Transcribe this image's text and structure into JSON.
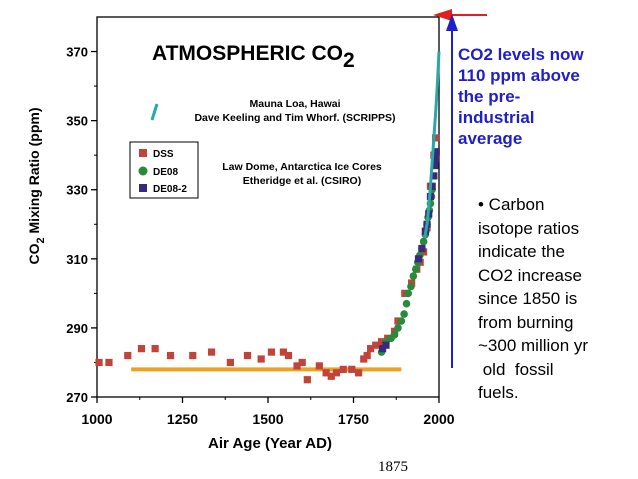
{
  "chart_data": {
    "type": "scatter",
    "title": "ATMOSPHERIC CO",
    "title_subscript": "2",
    "xlabel": "Air Age (Year AD)",
    "ylabel": "CO",
    "ylabel_subscript": "2",
    "ylabel_rest": " Mixing Ratio (ppm)",
    "xlim": [
      1000,
      2000
    ],
    "ylim": [
      270,
      380
    ],
    "x_ticks": [
      "1000",
      "1250",
      "1500",
      "1750",
      "2000"
    ],
    "y_ticks": [
      "270",
      "290",
      "310",
      "330",
      "350",
      "370"
    ],
    "annotations": {
      "mauna_loa_line1": "Mauna Loa, Hawai",
      "mauna_loa_line2": "Dave Keeling and Tim Whorf. (SCRIPPS)",
      "law_dome_line1": "Law Dome, Antarctica Ice Cores",
      "law_dome_line2": "Etheridge et al. (CSIRO)"
    },
    "legend_position": "left-middle",
    "series": [
      {
        "name": "DSS",
        "marker": "square",
        "color": "#c0443a",
        "points": [
          [
            1006,
            280
          ],
          [
            1035,
            280
          ],
          [
            1090,
            282
          ],
          [
            1130,
            284
          ],
          [
            1170,
            284
          ],
          [
            1215,
            282
          ],
          [
            1280,
            282
          ],
          [
            1335,
            283
          ],
          [
            1390,
            280
          ],
          [
            1440,
            282
          ],
          [
            1480,
            281
          ],
          [
            1510,
            283
          ],
          [
            1545,
            283
          ],
          [
            1560,
            282
          ],
          [
            1585,
            279
          ],
          [
            1600,
            280
          ],
          [
            1615,
            275
          ],
          [
            1650,
            279
          ],
          [
            1670,
            277
          ],
          [
            1685,
            276
          ],
          [
            1700,
            277
          ],
          [
            1720,
            278
          ],
          [
            1745,
            278
          ],
          [
            1765,
            277
          ],
          [
            1780,
            281
          ],
          [
            1790,
            282
          ],
          [
            1800,
            284
          ],
          [
            1815,
            285
          ],
          [
            1832,
            286
          ],
          [
            1850,
            287
          ],
          [
            1870,
            289
          ],
          [
            1880,
            292
          ],
          [
            1900,
            300
          ],
          [
            1920,
            303
          ],
          [
            1935,
            307
          ],
          [
            1945,
            309
          ],
          [
            1955,
            312
          ],
          [
            1965,
            319
          ],
          [
            1975,
            331
          ],
          [
            1985,
            340
          ],
          [
            1990,
            345
          ]
        ]
      },
      {
        "name": "DE08",
        "marker": "circle",
        "color": "#2a8a3c",
        "points": [
          [
            1832,
            283
          ],
          [
            1845,
            286
          ],
          [
            1860,
            287
          ],
          [
            1870,
            288
          ],
          [
            1880,
            290
          ],
          [
            1890,
            292
          ],
          [
            1898,
            294
          ],
          [
            1905,
            297
          ],
          [
            1910,
            300
          ],
          [
            1918,
            302
          ],
          [
            1925,
            305
          ],
          [
            1932,
            307
          ],
          [
            1938,
            309
          ],
          [
            1944,
            311
          ],
          [
            1950,
            313
          ],
          [
            1955,
            315
          ],
          [
            1960,
            317
          ],
          [
            1962,
            318
          ],
          [
            1965,
            320
          ],
          [
            1968,
            322
          ],
          [
            1972,
            324
          ],
          [
            1975,
            326
          ],
          [
            1978,
            328
          ],
          [
            1980,
            330
          ]
        ]
      },
      {
        "name": "DE08-2",
        "marker": "square",
        "color": "#3a2a7a",
        "points": [
          [
            1835,
            284
          ],
          [
            1845,
            285
          ],
          [
            1940,
            310
          ],
          [
            1950,
            313
          ],
          [
            1960,
            318
          ],
          [
            1965,
            320
          ],
          [
            1970,
            323
          ],
          [
            1975,
            328
          ],
          [
            1980,
            331
          ],
          [
            1985,
            334
          ],
          [
            1988,
            337
          ],
          [
            1990,
            339
          ],
          [
            1992,
            341
          ]
        ]
      },
      {
        "name": "",
        "marker": "line",
        "color": "#2aa8a8",
        "points": [
          [
            1958,
            316
          ],
          [
            1965,
            320
          ],
          [
            1970,
            325
          ],
          [
            1975,
            331
          ],
          [
            1980,
            338
          ],
          [
            1985,
            345
          ],
          [
            1990,
            352
          ],
          [
            1995,
            360
          ],
          [
            2000,
            370
          ]
        ]
      }
    ],
    "baseline": {
      "color": "#f0a020",
      "y": 278,
      "x_start": 1100,
      "x_end": 1890
    }
  },
  "callout": {
    "color": "#2020c8",
    "lines": [
      "CO2 levels now",
      "110 ppm above",
      "the pre-",
      "industrial",
      "average"
    ]
  },
  "bullet_block": {
    "lines": [
      "• Carbon",
      "isotope ratios",
      "indicate the",
      "CO2 increase",
      "since 1850 is",
      "from burning",
      "~300 million yr",
      " old  fossil",
      "fuels."
    ]
  },
  "footer": {
    "year": "1875"
  },
  "colors": {
    "red_arrow": "#e02020",
    "blue_arrow": "#2020c8",
    "teal_line": "#2aa8a8"
  }
}
